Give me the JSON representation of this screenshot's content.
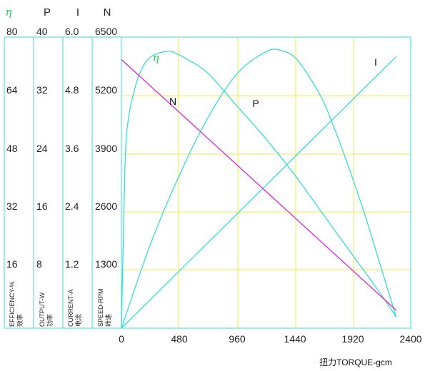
{
  "chart_data": {
    "type": "line",
    "x_axis": {
      "label": "扭力TORQUE-gcm",
      "ticks": [
        "0",
        "480",
        "960",
        "1440",
        "1920",
        "2400"
      ],
      "range": [
        0,
        2400
      ]
    },
    "y_axes": [
      {
        "symbol": "η",
        "label_en": "EFFICIENCY-%",
        "label_cn": "效率",
        "ticks": [
          "80",
          "64",
          "48",
          "32",
          "16"
        ],
        "range": [
          0,
          80
        ]
      },
      {
        "symbol": "P",
        "label_en": "OUTPUT-W",
        "label_cn": "功率",
        "ticks": [
          "40",
          "32",
          "24",
          "16",
          "8"
        ],
        "range": [
          0,
          40
        ]
      },
      {
        "symbol": "I",
        "label_en": "CURRENT-A",
        "label_cn": "电流",
        "ticks": [
          "6.0",
          "4.8",
          "3.6",
          "2.4",
          "1.2"
        ],
        "range": [
          0,
          6.0
        ]
      },
      {
        "symbol": "N",
        "label_en": "SPEED-RPM",
        "label_cn": "转速",
        "ticks": [
          "6500",
          "5200",
          "3900",
          "2600",
          "1300"
        ],
        "range": [
          0,
          6500
        ]
      }
    ],
    "series": [
      {
        "name": "η",
        "axis": 0,
        "color": "#33dddd",
        "x": [
          0,
          30,
          60,
          120,
          180,
          240,
          300,
          360,
          420,
          540,
          720,
          960,
          1200,
          1440,
          1680,
          1920,
          2160,
          2280
        ],
        "y": [
          0,
          45,
          58,
          67,
          72,
          74.5,
          75.5,
          76,
          76,
          74,
          70,
          61,
          52,
          42,
          31,
          20,
          9,
          3
        ]
      },
      {
        "name": "P",
        "axis": 1,
        "color": "#33dddd",
        "x": [
          0,
          240,
          480,
          720,
          960,
          1200,
          1320,
          1440,
          1560,
          1680,
          1800,
          1920,
          2040,
          2160,
          2280
        ],
        "y": [
          0,
          11.5,
          21,
          29,
          35,
          38,
          38.2,
          37.2,
          34.5,
          31,
          26,
          20.5,
          14.5,
          8,
          1.5
        ]
      },
      {
        "name": "I",
        "axis": 2,
        "color": "#33dddd",
        "x": [
          0,
          2280
        ],
        "y": [
          0,
          5.6
        ]
      },
      {
        "name": "N",
        "axis": 3,
        "color": "#dd22dd",
        "x": [
          0,
          2280
        ],
        "y": [
          6000,
          400
        ]
      }
    ],
    "grid": true,
    "grid_color": "#eeee44",
    "axis_color": "#33dddd"
  }
}
